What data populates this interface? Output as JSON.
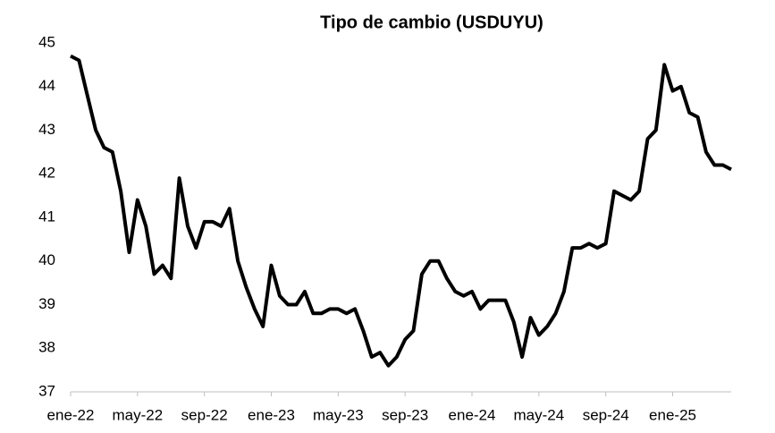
{
  "chart_data": {
    "type": "line",
    "title": "Tipo de cambio (USDUYU)",
    "categories": [
      "ene-22",
      null,
      null,
      null,
      null,
      null,
      null,
      null,
      "may-22",
      null,
      null,
      null,
      null,
      null,
      null,
      null,
      "sep-22",
      null,
      null,
      null,
      null,
      null,
      null,
      null,
      "ene-23",
      null,
      null,
      null,
      null,
      null,
      null,
      null,
      "may-23",
      null,
      null,
      null,
      null,
      null,
      null,
      null,
      "sep-23",
      null,
      null,
      null,
      null,
      null,
      null,
      null,
      "ene-24",
      null,
      null,
      null,
      null,
      null,
      null,
      null,
      "may-24",
      null,
      null,
      null,
      null,
      null,
      null,
      null,
      "sep-24",
      null,
      null,
      null,
      null,
      null,
      null,
      null,
      "ene-25",
      null,
      null,
      null,
      null,
      null,
      null,
      null
    ],
    "values": [
      44.7,
      44.6,
      43.8,
      43.0,
      42.6,
      42.5,
      41.6,
      40.2,
      41.4,
      40.8,
      39.7,
      39.9,
      39.6,
      41.9,
      40.8,
      40.3,
      40.9,
      40.9,
      40.8,
      41.2,
      40.0,
      39.4,
      38.9,
      38.5,
      39.9,
      39.2,
      39.0,
      39.0,
      39.3,
      38.8,
      38.8,
      38.9,
      38.9,
      38.8,
      38.9,
      38.4,
      37.8,
      37.9,
      37.6,
      37.8,
      38.2,
      38.4,
      39.7,
      40.0,
      40.0,
      39.6,
      39.3,
      39.2,
      39.3,
      38.9,
      39.1,
      39.1,
      39.1,
      38.6,
      37.8,
      38.7,
      38.3,
      38.5,
      38.8,
      39.3,
      40.3,
      40.3,
      40.4,
      40.3,
      40.4,
      41.6,
      41.5,
      41.4,
      41.6,
      42.8,
      43.0,
      44.5,
      43.9,
      44.0,
      43.4,
      43.3,
      42.5,
      42.2,
      42.2,
      42.1
    ],
    "color": "#000000",
    "ylim": [
      37,
      45
    ],
    "yticks": [
      37,
      38,
      39,
      40,
      41,
      42,
      43,
      44,
      45
    ],
    "grid": false
  }
}
